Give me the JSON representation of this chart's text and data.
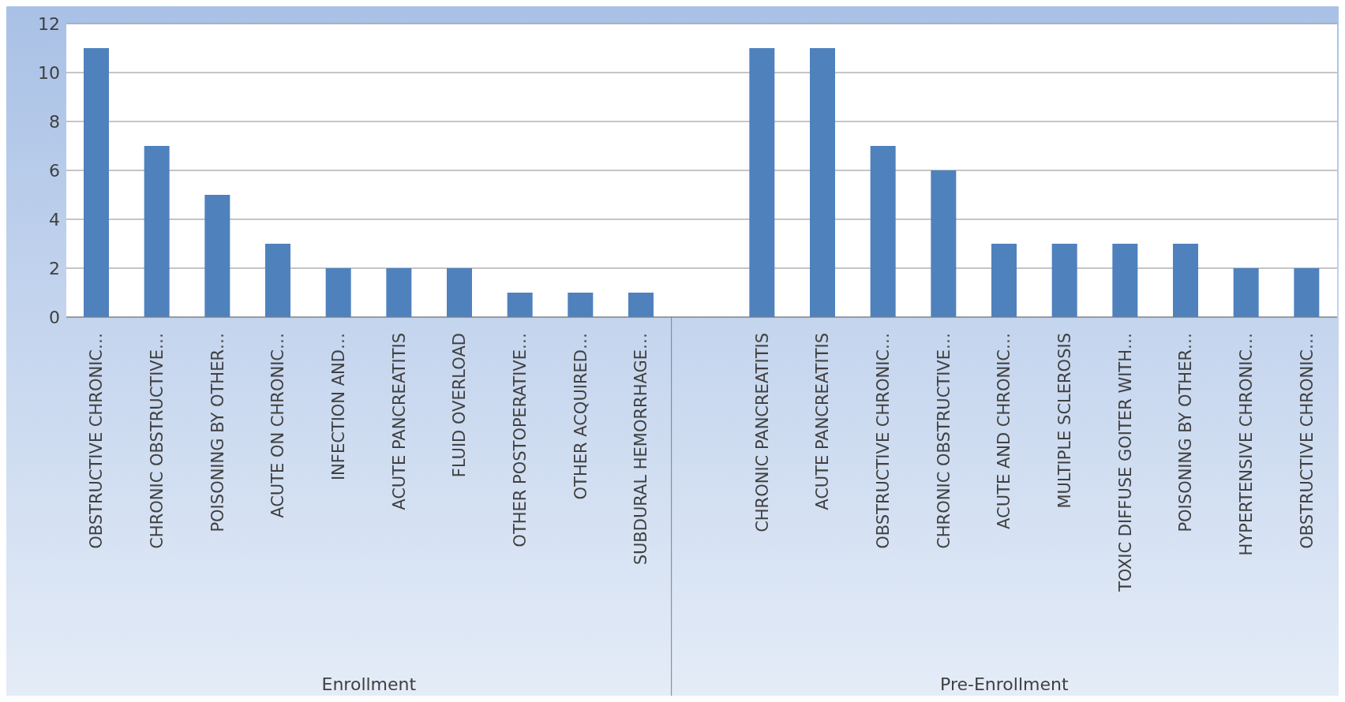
{
  "chart_data": {
    "type": "bar",
    "categories": [
      "OBSTRUCTIVE CHRONIC…",
      "CHRONIC OBSTRUCTIVE…",
      "POISONING BY OTHER…",
      "ACUTE ON CHRONIC…",
      "INFECTION AND…",
      "ACUTE PANCREATITIS",
      "FLUID OVERLOAD",
      "OTHER POSTOPERATIVE…",
      "OTHER ACQUIRED…",
      "SUBDURAL HEMORRHAGE…",
      null,
      "CHRONIC PANCREATITIS",
      "ACUTE PANCREATITIS",
      "OBSTRUCTIVE CHRONIC…",
      "CHRONIC OBSTRUCTIVE…",
      "ACUTE AND CHRONIC…",
      "MULTIPLE SCLEROSIS",
      "TOXIC DIFFUSE GOITER WITH…",
      "POISONING BY OTHER…",
      "HYPERTENSIVE CHRONIC…",
      "OBSTRUCTIVE CHRONIC…"
    ],
    "values": [
      11,
      7,
      5,
      3,
      2,
      2,
      2,
      1,
      1,
      1,
      null,
      11,
      11,
      7,
      6,
      3,
      3,
      3,
      3,
      2,
      2
    ],
    "color": "#4f81bd",
    "ylim": [
      0,
      12
    ],
    "yticks": [
      0,
      2,
      4,
      6,
      8,
      10,
      12
    ],
    "grid": "y",
    "annotations": [
      "Enrollment",
      "Pre-Enrollment"
    ]
  }
}
